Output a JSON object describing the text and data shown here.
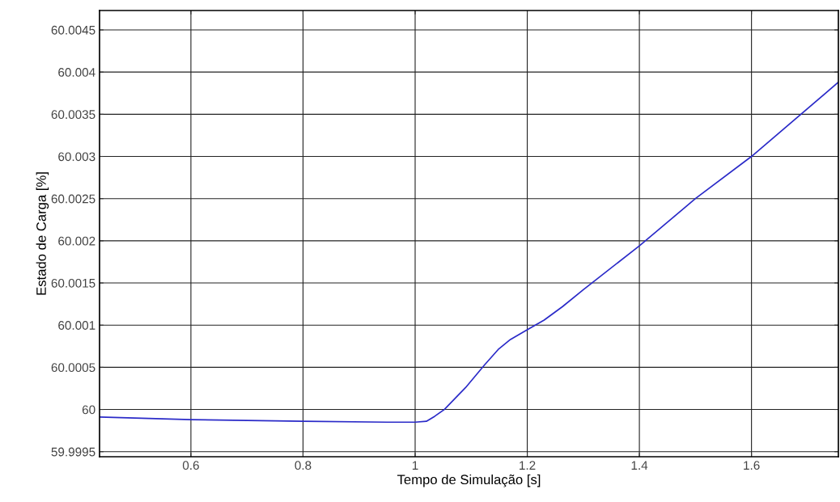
{
  "chart_data": {
    "type": "line",
    "xlabel": "Tempo de Simulação [s]",
    "ylabel": "Estado de Carga [%]",
    "xlim": [
      0.437,
      1.755
    ],
    "xticks": [
      0.6,
      0.8,
      1,
      1.2,
      1.4,
      1.6
    ],
    "ylim": [
      59.99944,
      60.00473
    ],
    "yticks": [
      59.9995,
      60,
      60.0005,
      60.001,
      60.0015,
      60.002,
      60.0025,
      60.003,
      60.0035,
      60.004,
      60.0045
    ],
    "grid": true,
    "legend": false,
    "marker": "none",
    "line_style": "solid",
    "series": [
      {
        "color": "#2a2ac8",
        "x": [
          0.437,
          0.6,
          0.8,
          0.95,
          1.0,
          1.02,
          1.035,
          1.052,
          1.09,
          1.124,
          1.148,
          1.17,
          1.196,
          1.23,
          1.263,
          1.3,
          1.4,
          1.5,
          1.6,
          1.755
        ],
        "values": [
          59.99991,
          59.99988,
          59.99986,
          59.99985,
          59.99985,
          59.99986,
          59.99992,
          60.0,
          60.00026,
          60.00053,
          60.00071,
          60.00083,
          60.00093,
          60.00106,
          60.00122,
          60.00142,
          60.00194,
          60.0025,
          60.003,
          60.00388
        ]
      }
    ]
  }
}
